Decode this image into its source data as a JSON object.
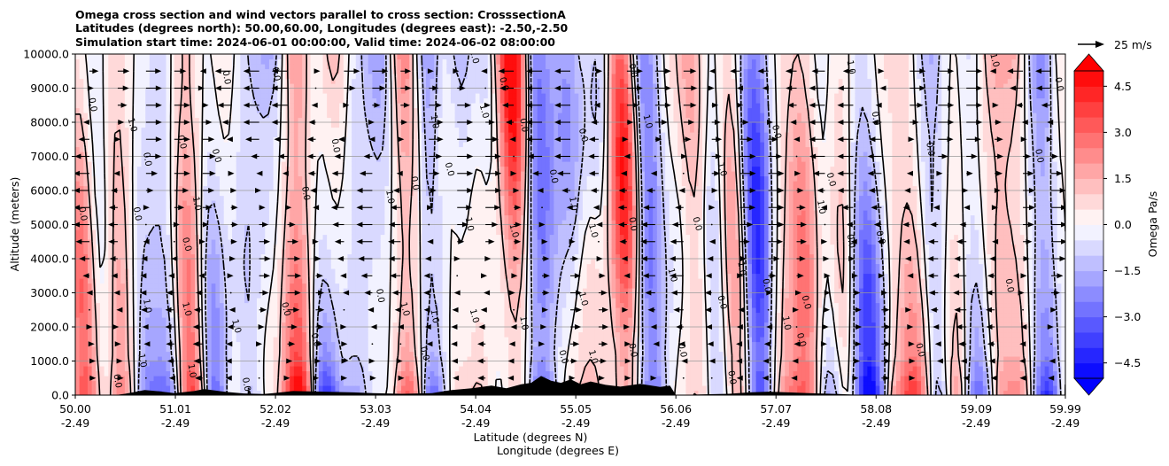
{
  "chart_data": {
    "type": "heatmap",
    "title_lines": [
      "Omega cross section and wind vectors parallel to cross section: CrosssectionA",
      "Latitudes (degrees north): 50.00,60.00, Longitudes (degrees east): -2.50,-2.50",
      "Simulation start time: 2024-06-01 00:00:00, Valid time: 2024-06-02 08:00:00"
    ],
    "xlabel_lines": [
      "Latitude (degrees N)",
      "Longitude (degrees E)"
    ],
    "ylabel": "Altitude (meters)",
    "xlim": [
      50.0,
      59.99
    ],
    "ylim": [
      0,
      10000
    ],
    "x_ticks": [
      {
        "lat": 50.0,
        "lat_label": "50.00",
        "lon_label": "-2.49"
      },
      {
        "lat": 51.01,
        "lat_label": "51.01",
        "lon_label": "-2.49"
      },
      {
        "lat": 52.02,
        "lat_label": "52.02",
        "lon_label": "-2.49"
      },
      {
        "lat": 53.03,
        "lat_label": "53.03",
        "lon_label": "-2.49"
      },
      {
        "lat": 54.04,
        "lat_label": "54.04",
        "lon_label": "-2.49"
      },
      {
        "lat": 55.05,
        "lat_label": "55.05",
        "lon_label": "-2.49"
      },
      {
        "lat": 56.06,
        "lat_label": "56.06",
        "lon_label": "-2.49"
      },
      {
        "lat": 57.07,
        "lat_label": "57.07",
        "lon_label": "-2.49"
      },
      {
        "lat": 58.08,
        "lat_label": "58.08",
        "lon_label": "-2.49"
      },
      {
        "lat": 59.09,
        "lat_label": "59.09",
        "lon_label": "-2.49"
      },
      {
        "lat": 59.99,
        "lat_label": "59.99",
        "lon_label": "-2.49"
      }
    ],
    "y_ticks": [
      {
        "value": 0,
        "label": "0.0"
      },
      {
        "value": 1000,
        "label": "1000.0"
      },
      {
        "value": 2000,
        "label": "2000.0"
      },
      {
        "value": 3000,
        "label": "3000.0"
      },
      {
        "value": 4000,
        "label": "4000.0"
      },
      {
        "value": 5000,
        "label": "5000.0"
      },
      {
        "value": 6000,
        "label": "6000.0"
      },
      {
        "value": 7000,
        "label": "7000.0"
      },
      {
        "value": 8000,
        "label": "8000.0"
      },
      {
        "value": 9000,
        "label": "9000.0"
      },
      {
        "value": 10000,
        "label": "10000.0"
      }
    ],
    "grid": "horizontal",
    "colorbar": {
      "label": "Omega Pa/s",
      "range": [
        -5,
        5
      ],
      "levels": 20,
      "cmap": "bwr",
      "extend": "both",
      "ticks": [
        {
          "value": 4.5,
          "label": "4.5"
        },
        {
          "value": 3.0,
          "label": "3.0"
        },
        {
          "value": 1.5,
          "label": "1.5"
        },
        {
          "value": 0.0,
          "label": "0.0"
        },
        {
          "value": -1.5,
          "label": "−1.5"
        },
        {
          "value": -3.0,
          "label": "−3.0"
        },
        {
          "value": -4.5,
          "label": "−4.5"
        }
      ]
    },
    "wind_key": {
      "label": "25 m/s",
      "speed": 25
    },
    "contour_levels": [
      -1.0,
      0.0,
      1.0
    ],
    "contour_labels": [
      {
        "lat": 50.15,
        "alt": 8500,
        "text": "0.0"
      },
      {
        "lat": 50.05,
        "alt": 5300,
        "text": "0.0"
      },
      {
        "lat": 50.4,
        "alt": 400,
        "text": "0.0"
      },
      {
        "lat": 50.55,
        "alt": 7900,
        "text": "1.0"
      },
      {
        "lat": 50.7,
        "alt": 6900,
        "text": "0.0"
      },
      {
        "lat": 50.6,
        "alt": 5300,
        "text": "0.0"
      },
      {
        "lat": 50.7,
        "alt": 2600,
        "text": "1.0"
      },
      {
        "lat": 50.65,
        "alt": 1000,
        "text": "1.0"
      },
      {
        "lat": 51.05,
        "alt": 7400,
        "text": "0.0"
      },
      {
        "lat": 51.2,
        "alt": 5600,
        "text": "1.0"
      },
      {
        "lat": 51.1,
        "alt": 4400,
        "text": "0.0"
      },
      {
        "lat": 51.1,
        "alt": 2500,
        "text": "1.0"
      },
      {
        "lat": 51.15,
        "alt": 700,
        "text": "1.0"
      },
      {
        "lat": 51.5,
        "alt": 9300,
        "text": "0.0"
      },
      {
        "lat": 51.4,
        "alt": 7000,
        "text": "0.0"
      },
      {
        "lat": 51.6,
        "alt": 2000,
        "text": "1.0"
      },
      {
        "lat": 51.7,
        "alt": 300,
        "text": "0.0"
      },
      {
        "lat": 52.0,
        "alt": 9400,
        "text": "0.0"
      },
      {
        "lat": 52.1,
        "alt": 2500,
        "text": "0.0"
      },
      {
        "lat": 52.4,
        "alt": 1600,
        "text": "0.0"
      },
      {
        "lat": 52.3,
        "alt": 5900,
        "text": "0.0"
      },
      {
        "lat": 52.6,
        "alt": 7300,
        "text": "0.0"
      },
      {
        "lat": 53.05,
        "alt": 2900,
        "text": "0.0"
      },
      {
        "lat": 53.15,
        "alt": 5800,
        "text": "1.0"
      },
      {
        "lat": 53.3,
        "alt": 2500,
        "text": "1.0"
      },
      {
        "lat": 53.6,
        "alt": 8000,
        "text": "1.0"
      },
      {
        "lat": 53.4,
        "alt": 6200,
        "text": "0.0"
      },
      {
        "lat": 53.5,
        "alt": 1200,
        "text": "0.0"
      },
      {
        "lat": 53.6,
        "alt": 2300,
        "text": "1.0"
      },
      {
        "lat": 53.75,
        "alt": 6600,
        "text": "0.0"
      },
      {
        "lat": 54.0,
        "alt": 9900,
        "text": "1.0"
      },
      {
        "lat": 53.95,
        "alt": 5000,
        "text": "1.0"
      },
      {
        "lat": 54.0,
        "alt": 2300,
        "text": "1.0"
      },
      {
        "lat": 54.1,
        "alt": 8300,
        "text": "1.0"
      },
      {
        "lat": 54.3,
        "alt": 9100,
        "text": "0.0"
      },
      {
        "lat": 54.5,
        "alt": 7900,
        "text": "0.0"
      },
      {
        "lat": 54.4,
        "alt": 4800,
        "text": "1.0"
      },
      {
        "lat": 54.5,
        "alt": 2100,
        "text": "1.0"
      },
      {
        "lat": 54.8,
        "alt": 6400,
        "text": "0.0"
      },
      {
        "lat": 54.9,
        "alt": 1100,
        "text": "0.0"
      },
      {
        "lat": 55.1,
        "alt": 7600,
        "text": "0.0"
      },
      {
        "lat": 55.0,
        "alt": 5600,
        "text": "1.0"
      },
      {
        "lat": 55.2,
        "alt": 4800,
        "text": "1.0"
      },
      {
        "lat": 55.1,
        "alt": 2800,
        "text": "1.0"
      },
      {
        "lat": 55.2,
        "alt": 1100,
        "text": "1.0"
      },
      {
        "lat": 55.6,
        "alt": 9500,
        "text": "0.0"
      },
      {
        "lat": 55.75,
        "alt": 8000,
        "text": "1.0"
      },
      {
        "lat": 55.6,
        "alt": 5000,
        "text": "0.0"
      },
      {
        "lat": 55.6,
        "alt": 1300,
        "text": "0.0"
      },
      {
        "lat": 56.0,
        "alt": 3500,
        "text": "1.0"
      },
      {
        "lat": 56.1,
        "alt": 1300,
        "text": "0.0"
      },
      {
        "lat": 56.5,
        "alt": 6600,
        "text": "1.0"
      },
      {
        "lat": 56.25,
        "alt": 5000,
        "text": "0.0"
      },
      {
        "lat": 56.5,
        "alt": 2700,
        "text": "0.0"
      },
      {
        "lat": 56.6,
        "alt": 500,
        "text": "0.0"
      },
      {
        "lat": 56.7,
        "alt": 3700,
        "text": "1.0"
      },
      {
        "lat": 56.95,
        "alt": 3200,
        "text": "0.0"
      },
      {
        "lat": 57.05,
        "alt": 7700,
        "text": "0.0"
      },
      {
        "lat": 57.15,
        "alt": 2100,
        "text": "1.0"
      },
      {
        "lat": 57.3,
        "alt": 1600,
        "text": "0.0"
      },
      {
        "lat": 57.35,
        "alt": 2700,
        "text": "0.0"
      },
      {
        "lat": 57.5,
        "alt": 5500,
        "text": "1.0"
      },
      {
        "lat": 57.6,
        "alt": 6300,
        "text": "0.0"
      },
      {
        "lat": 57.8,
        "alt": 4500,
        "text": "0.0"
      },
      {
        "lat": 57.8,
        "alt": 9600,
        "text": "1.0"
      },
      {
        "lat": 58.05,
        "alt": 8100,
        "text": "0.0"
      },
      {
        "lat": 58.1,
        "alt": 4600,
        "text": "0.0"
      },
      {
        "lat": 58.5,
        "alt": 1300,
        "text": "0.0"
      },
      {
        "lat": 58.6,
        "alt": 7200,
        "text": "0.0"
      },
      {
        "lat": 59.25,
        "alt": 9800,
        "text": "1.0"
      },
      {
        "lat": 59.4,
        "alt": 3200,
        "text": "0.0"
      },
      {
        "lat": 59.7,
        "alt": 7000,
        "text": "0.0"
      },
      {
        "lat": 59.9,
        "alt": 9100,
        "text": "0.0"
      }
    ],
    "terrain": [
      [
        50.0,
        0
      ],
      [
        50.2,
        0
      ],
      [
        50.4,
        0
      ],
      [
        50.5,
        40
      ],
      [
        50.6,
        90
      ],
      [
        50.7,
        150
      ],
      [
        50.85,
        110
      ],
      [
        51.0,
        60
      ],
      [
        51.2,
        120
      ],
      [
        51.3,
        180
      ],
      [
        51.5,
        100
      ],
      [
        51.7,
        50
      ],
      [
        51.9,
        30
      ],
      [
        52.0,
        60
      ],
      [
        52.2,
        120
      ],
      [
        52.5,
        100
      ],
      [
        52.8,
        80
      ],
      [
        53.0,
        60
      ],
      [
        53.3,
        40
      ],
      [
        53.6,
        60
      ],
      [
        53.8,
        150
      ],
      [
        54.0,
        200
      ],
      [
        54.2,
        280
      ],
      [
        54.35,
        200
      ],
      [
        54.5,
        320
      ],
      [
        54.6,
        360
      ],
      [
        54.7,
        560
      ],
      [
        54.8,
        420
      ],
      [
        54.9,
        360
      ],
      [
        55.0,
        460
      ],
      [
        55.1,
        320
      ],
      [
        55.2,
        400
      ],
      [
        55.35,
        300
      ],
      [
        55.5,
        250
      ],
      [
        55.7,
        330
      ],
      [
        55.9,
        240
      ],
      [
        56.0,
        280
      ],
      [
        56.06,
        0
      ],
      [
        56.3,
        20
      ],
      [
        56.6,
        40
      ],
      [
        56.8,
        80
      ],
      [
        57.0,
        100
      ],
      [
        57.2,
        80
      ],
      [
        57.4,
        60
      ],
      [
        57.7,
        30
      ],
      [
        58.0,
        0
      ],
      [
        59.99,
        0
      ]
    ]
  }
}
